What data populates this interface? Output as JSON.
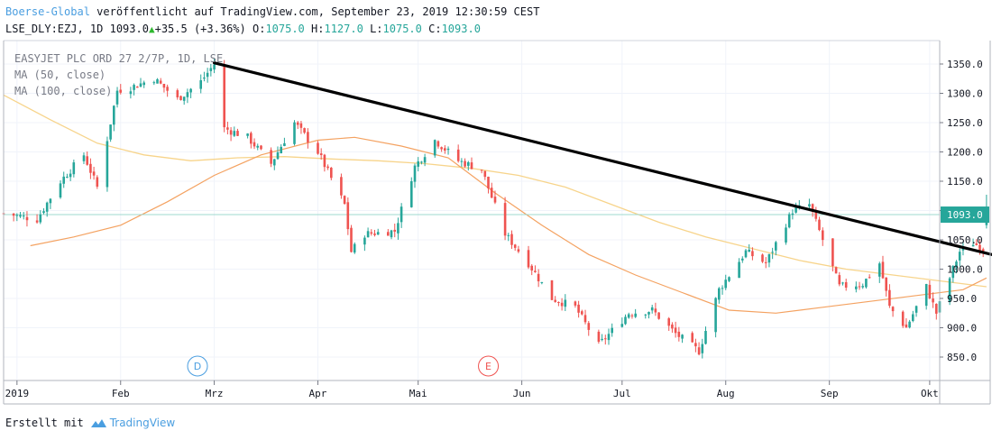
{
  "header": {
    "brand": "Boerse-Global",
    "published_text": " veröffentlicht auf TradingView.com, September 23, 2019 12:30:59 CEST",
    "symbol": "LSE_DLY:EZJ, 1D",
    "last": "1093.0",
    "change": "+35.5 (+3.36%)",
    "o_label": "O:",
    "o_value": "1075.0",
    "h_label": "H:",
    "h_value": "1127.0",
    "l_label": "L:",
    "l_value": "1075.0",
    "c_label": "C:",
    "c_value": "1093.0"
  },
  "legend": {
    "title": "EASYJET PLC ORD 27 2/7P, 1D, LSE",
    "ma50": "MA (50, close)",
    "ma100": "MA (100, close)"
  },
  "footer": {
    "created_with": "Erstellt mit",
    "brand": "TradingView",
    "logo_icon": "tradingview-cloud-icon"
  },
  "colors": {
    "up": "#26a69a",
    "down": "#ef5350",
    "ma50": "#f4a261",
    "ma100": "#f7d48b",
    "trendline": "#000000",
    "price_line": "#9fd8cf",
    "price_label": "#26a69a",
    "event_d": "#4a9ee0",
    "event_e": "#ef5350"
  },
  "chart_data": {
    "type": "candlestick",
    "title": "EASYJET PLC ORD 27 2/7P, 1D, LSE",
    "ylim": [
      810,
      1390
    ],
    "y_ticks": [
      850,
      900,
      950,
      1000,
      1050,
      1100,
      1150,
      1200,
      1250,
      1300,
      1350
    ],
    "y_tick_labels": [
      "850.0",
      "900.0",
      "950.0",
      "1000.0",
      "1050.0",
      "1100.0",
      "1150.0",
      "1200.0",
      "1250.0",
      "1300.0",
      "1350.0"
    ],
    "x_range": [
      "2018-12-28",
      "2019-10-04"
    ],
    "x_ticks": [
      {
        "date": "2019-01-01",
        "label": "2019"
      },
      {
        "date": "2019-02-01",
        "label": "Feb"
      },
      {
        "date": "2019-03-01",
        "label": "Mrz"
      },
      {
        "date": "2019-04-01",
        "label": "Apr"
      },
      {
        "date": "2019-05-01",
        "label": "Mai"
      },
      {
        "date": "2019-06-01",
        "label": "Jun"
      },
      {
        "date": "2019-07-01",
        "label": "Jul"
      },
      {
        "date": "2019-08-01",
        "label": "Aug"
      },
      {
        "date": "2019-09-01",
        "label": "Sep"
      },
      {
        "date": "2019-10-01",
        "label": "Okt"
      }
    ],
    "last_price": 1093.0,
    "last_price_label": "1093.0",
    "anchors": [
      [
        "2018-12-28",
        1095
      ],
      [
        "2019-01-07",
        1085
      ],
      [
        "2019-01-14",
        1150
      ],
      [
        "2019-01-21",
        1195
      ],
      [
        "2019-01-25",
        1140
      ],
      [
        "2019-01-31",
        1305
      ],
      [
        "2019-02-04",
        1310
      ],
      [
        "2019-02-11",
        1325
      ],
      [
        "2019-02-18",
        1290
      ],
      [
        "2019-02-25",
        1320
      ],
      [
        "2019-03-01",
        1350
      ],
      [
        "2019-03-04",
        1240
      ],
      [
        "2019-03-11",
        1225
      ],
      [
        "2019-03-18",
        1180
      ],
      [
        "2019-03-25",
        1250
      ],
      [
        "2019-04-01",
        1200
      ],
      [
        "2019-04-05",
        1155
      ],
      [
        "2019-04-09",
        1110
      ],
      [
        "2019-04-11",
        1030
      ],
      [
        "2019-04-15",
        1060
      ],
      [
        "2019-04-24",
        1065
      ],
      [
        "2019-04-30",
        1175
      ],
      [
        "2019-05-06",
        1220
      ],
      [
        "2019-05-13",
        1185
      ],
      [
        "2019-05-20",
        1170
      ],
      [
        "2019-05-27",
        1060
      ],
      [
        "2019-06-03",
        1010
      ],
      [
        "2019-06-10",
        950
      ],
      [
        "2019-06-17",
        935
      ],
      [
        "2019-06-24",
        870
      ],
      [
        "2019-06-28",
        895
      ],
      [
        "2019-07-03",
        925
      ],
      [
        "2019-07-10",
        930
      ],
      [
        "2019-07-17",
        890
      ],
      [
        "2019-07-24",
        860
      ],
      [
        "2019-07-30",
        965
      ],
      [
        "2019-08-07",
        1030
      ],
      [
        "2019-08-13",
        1010
      ],
      [
        "2019-08-21",
        1100
      ],
      [
        "2019-08-26",
        1110
      ],
      [
        "2019-08-30",
        1050
      ],
      [
        "2019-09-04",
        970
      ],
      [
        "2019-09-11",
        975
      ],
      [
        "2019-09-16",
        1010
      ],
      [
        "2019-09-19",
        935
      ],
      [
        "2019-09-24",
        900
      ],
      [
        "2019-09-30",
        970
      ],
      [
        "2019-10-03",
        925
      ],
      [
        "2019-10-10",
        1030
      ],
      [
        "2019-10-14",
        1045
      ],
      [
        "2019-10-17",
        1035
      ],
      [
        "2019-10-18",
        1093
      ]
    ],
    "ma50_points": [
      [
        "2019-01-05",
        1040
      ],
      [
        "2019-01-18",
        1055
      ],
      [
        "2019-02-01",
        1075
      ],
      [
        "2019-02-15",
        1115
      ],
      [
        "2019-03-01",
        1160
      ],
      [
        "2019-03-15",
        1195
      ],
      [
        "2019-04-01",
        1220
      ],
      [
        "2019-04-12",
        1225
      ],
      [
        "2019-04-26",
        1210
      ],
      [
        "2019-05-10",
        1190
      ],
      [
        "2019-05-24",
        1130
      ],
      [
        "2019-06-07",
        1075
      ],
      [
        "2019-06-21",
        1025
      ],
      [
        "2019-07-05",
        990
      ],
      [
        "2019-07-19",
        960
      ],
      [
        "2019-08-02",
        930
      ],
      [
        "2019-08-16",
        925
      ],
      [
        "2019-08-30",
        935
      ],
      [
        "2019-09-13",
        945
      ],
      [
        "2019-09-27",
        955
      ],
      [
        "2019-10-11",
        965
      ],
      [
        "2019-10-18",
        985
      ]
    ],
    "ma100_points": [
      [
        "2018-12-28",
        1297
      ],
      [
        "2019-01-11",
        1255
      ],
      [
        "2019-01-25",
        1215
      ],
      [
        "2019-02-08",
        1195
      ],
      [
        "2019-02-22",
        1185
      ],
      [
        "2019-03-08",
        1190
      ],
      [
        "2019-03-22",
        1192
      ],
      [
        "2019-04-05",
        1188
      ],
      [
        "2019-04-19",
        1185
      ],
      [
        "2019-05-03",
        1180
      ],
      [
        "2019-05-17",
        1172
      ],
      [
        "2019-05-31",
        1160
      ],
      [
        "2019-06-14",
        1140
      ],
      [
        "2019-06-28",
        1110
      ],
      [
        "2019-07-12",
        1080
      ],
      [
        "2019-07-26",
        1055
      ],
      [
        "2019-08-09",
        1035
      ],
      [
        "2019-08-23",
        1015
      ],
      [
        "2019-09-06",
        1000
      ],
      [
        "2019-09-20",
        990
      ],
      [
        "2019-10-04",
        980
      ],
      [
        "2019-10-18",
        970
      ]
    ],
    "trendline": {
      "start": [
        "2019-03-01",
        1352
      ],
      "end": [
        "2019-10-28",
        1013
      ]
    },
    "events": [
      {
        "date": "2019-02-24",
        "label": "D"
      },
      {
        "date": "2019-05-22",
        "label": "E"
      }
    ]
  }
}
